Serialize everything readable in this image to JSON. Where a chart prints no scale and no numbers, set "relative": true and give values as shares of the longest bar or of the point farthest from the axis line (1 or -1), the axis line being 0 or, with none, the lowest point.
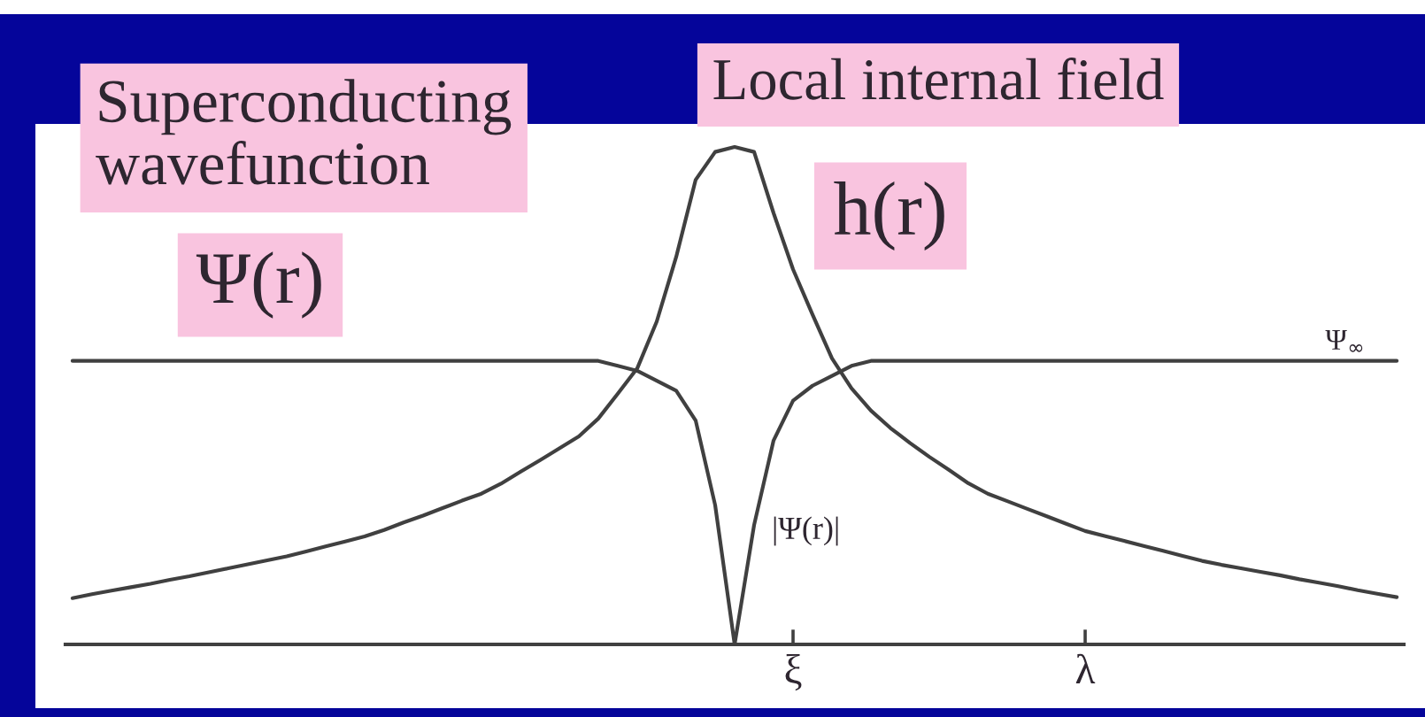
{
  "chart_data": {
    "type": "line",
    "relative": true,
    "tick_labels": "x",
    "categories": [
      null,
      null,
      null,
      null,
      null,
      null,
      null,
      null,
      null,
      null,
      null,
      null,
      null,
      null,
      null,
      null,
      null,
      null,
      null,
      null,
      null,
      null,
      null,
      null,
      null,
      null,
      null,
      null,
      null,
      null,
      null,
      null,
      null,
      null,
      null,
      null,
      null,
      "ξ",
      null,
      null,
      null,
      null,
      null,
      null,
      null,
      null,
      null,
      null,
      null,
      null,
      null,
      null,
      "λ",
      null,
      null,
      null,
      null,
      null,
      null,
      null,
      null,
      null,
      null,
      null,
      null,
      null,
      null,
      null,
      null
    ],
    "series": [
      {
        "name": "Ψ(r)",
        "color": "#404040",
        "values": [
          0.57,
          0.57,
          0.57,
          0.57,
          0.57,
          0.57,
          0.57,
          0.57,
          0.57,
          0.57,
          0.57,
          0.57,
          0.57,
          0.57,
          0.57,
          0.57,
          0.57,
          0.57,
          0.57,
          0.57,
          0.57,
          0.57,
          0.57,
          0.57,
          0.57,
          0.57,
          0.57,
          0.57,
          0.56,
          0.55,
          0.53,
          0.51,
          0.45,
          0.28,
          0,
          0.24,
          0.41,
          0.49,
          0.52,
          0.54,
          0.56,
          0.57,
          0.57,
          0.57,
          0.57,
          0.57,
          0.57,
          0.57,
          0.57,
          0.57,
          0.57,
          0.57,
          0.57,
          0.57,
          0.57,
          0.57,
          0.57,
          0.57,
          0.57,
          0.57,
          0.57,
          0.57,
          0.57,
          0.57,
          0.57,
          0.57,
          0.57,
          0.57,
          0.57
        ]
      },
      {
        "name": "h(r)",
        "color": "#404040",
        "values": [
          0.093,
          0.101,
          0.108,
          0.115,
          0.122,
          0.13,
          0.137,
          0.145,
          0.153,
          0.161,
          0.169,
          0.177,
          0.187,
          0.197,
          0.207,
          0.217,
          0.23,
          0.245,
          0.259,
          0.274,
          0.289,
          0.303,
          0.323,
          0.347,
          0.37,
          0.394,
          0.418,
          0.454,
          0.504,
          0.555,
          0.649,
          0.779,
          0.934,
          0.99,
          1.0,
          0.99,
          0.867,
          0.754,
          0.663,
          0.575,
          0.515,
          0.47,
          0.435,
          0.405,
          0.377,
          0.351,
          0.324,
          0.303,
          0.288,
          0.273,
          0.258,
          0.243,
          0.228,
          0.218,
          0.208,
          0.198,
          0.188,
          0.178,
          0.168,
          0.16,
          0.153,
          0.146,
          0.139,
          0.131,
          0.124,
          0.117,
          0.109,
          0.102,
          0.095
        ]
      }
    ],
    "annotations": [
      "Superconducting\nwavefunction",
      "Local internal field",
      {
        "text": "Ψ$_{∞}$",
        "y": 0.57
      },
      "|Ψ(r)|"
    ]
  }
}
